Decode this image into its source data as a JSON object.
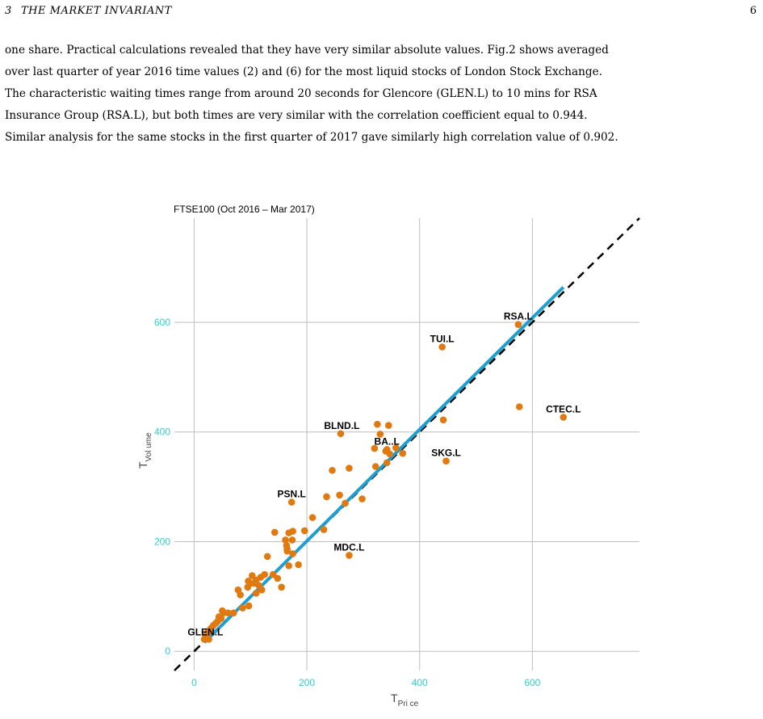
{
  "page": {
    "section_number": "3",
    "section_title": "THE MARKET INVARIANT",
    "page_number": "6",
    "paragraph_lines": [
      "one share. Practical calculations revealed that they have very similar absolute values. Fig.2 shows averaged",
      "over last quarter of year 2016 time values (2) and (6) for the most liquid stocks of London Stock Exchange.",
      "The characteristic waiting times range from around 20 seconds for Glencore (GLEN.L) to 10 mins for RSA",
      "Insurance Group (RSA.L), but both times are very similar with the correlation coefficient equal to 0.944.",
      "Similar analysis for the same stocks in the first quarter of 2017 gave similarly high correlation value of 0.902."
    ]
  },
  "chart_data": {
    "type": "scatter",
    "title": "FTSE100 (Oct 2016 – Mar 2017)",
    "xlabel_main": "T",
    "xlabel_sub": "Pri ce",
    "ylabel_main": "T",
    "ylabel_sub": "Vol ume",
    "xlim": [
      -35,
      790
    ],
    "ylim": [
      -35,
      790
    ],
    "x_ticks": [
      0,
      200,
      400,
      600
    ],
    "y_ticks": [
      0,
      200,
      400,
      600
    ],
    "grid": true,
    "colors": {
      "points": "#E07A10",
      "fit_line": "#1E9FD0",
      "diagonal": "#000000",
      "ticks": "#33CCCC",
      "grid": "#BEBEBE"
    },
    "fit_line": {
      "x": [
        18,
        655
      ],
      "y": [
        16,
        664
      ]
    },
    "diagonal": {
      "x": [
        -35,
        790
      ],
      "y": [
        -35,
        790
      ]
    },
    "labels": [
      {
        "text": "RSA.L",
        "x": 575,
        "y": 596
      },
      {
        "text": "TUI.L",
        "x": 440,
        "y": 555
      },
      {
        "text": "CTEC.L",
        "x": 655,
        "y": 427
      },
      {
        "text": "BLND.L",
        "x": 262,
        "y": 397
      },
      {
        "text": "BA..L",
        "x": 342,
        "y": 368
      },
      {
        "text": "SKG.L",
        "x": 447,
        "y": 347
      },
      {
        "text": "PSN.L",
        "x": 173,
        "y": 272
      },
      {
        "text": "MDC.L",
        "x": 275,
        "y": 175
      },
      {
        "text": "GLEN.L",
        "x": 20,
        "y": 20
      }
    ],
    "points": [
      {
        "x": 575,
        "y": 596
      },
      {
        "x": 440,
        "y": 555
      },
      {
        "x": 577,
        "y": 446
      },
      {
        "x": 655,
        "y": 427
      },
      {
        "x": 442,
        "y": 422
      },
      {
        "x": 447,
        "y": 347
      },
      {
        "x": 260,
        "y": 397
      },
      {
        "x": 325,
        "y": 414
      },
      {
        "x": 345,
        "y": 412
      },
      {
        "x": 330,
        "y": 396
      },
      {
        "x": 342,
        "y": 368
      },
      {
        "x": 340,
        "y": 365
      },
      {
        "x": 347,
        "y": 360
      },
      {
        "x": 358,
        "y": 371
      },
      {
        "x": 370,
        "y": 361
      },
      {
        "x": 320,
        "y": 370
      },
      {
        "x": 322,
        "y": 337
      },
      {
        "x": 342,
        "y": 344
      },
      {
        "x": 275,
        "y": 334
      },
      {
        "x": 245,
        "y": 330
      },
      {
        "x": 258,
        "y": 285
      },
      {
        "x": 235,
        "y": 282
      },
      {
        "x": 298,
        "y": 278
      },
      {
        "x": 268,
        "y": 270
      },
      {
        "x": 173,
        "y": 272
      },
      {
        "x": 210,
        "y": 244
      },
      {
        "x": 230,
        "y": 222
      },
      {
        "x": 143,
        "y": 217
      },
      {
        "x": 168,
        "y": 216
      },
      {
        "x": 175,
        "y": 219
      },
      {
        "x": 196,
        "y": 220
      },
      {
        "x": 162,
        "y": 203
      },
      {
        "x": 174,
        "y": 203
      },
      {
        "x": 164,
        "y": 193
      },
      {
        "x": 165,
        "y": 187
      },
      {
        "x": 165,
        "y": 183
      },
      {
        "x": 175,
        "y": 178
      },
      {
        "x": 130,
        "y": 173
      },
      {
        "x": 185,
        "y": 158
      },
      {
        "x": 168,
        "y": 156
      },
      {
        "x": 275,
        "y": 175
      },
      {
        "x": 148,
        "y": 133
      },
      {
        "x": 140,
        "y": 140
      },
      {
        "x": 125,
        "y": 140
      },
      {
        "x": 118,
        "y": 135
      },
      {
        "x": 103,
        "y": 138
      },
      {
        "x": 110,
        "y": 130
      },
      {
        "x": 96,
        "y": 128
      },
      {
        "x": 100,
        "y": 124
      },
      {
        "x": 107,
        "y": 124
      },
      {
        "x": 115,
        "y": 120
      },
      {
        "x": 120,
        "y": 112
      },
      {
        "x": 155,
        "y": 117
      },
      {
        "x": 78,
        "y": 112
      },
      {
        "x": 82,
        "y": 103
      },
      {
        "x": 95,
        "y": 117
      },
      {
        "x": 110,
        "y": 106
      },
      {
        "x": 86,
        "y": 79
      },
      {
        "x": 97,
        "y": 83
      },
      {
        "x": 70,
        "y": 70
      },
      {
        "x": 50,
        "y": 74
      },
      {
        "x": 52,
        "y": 70
      },
      {
        "x": 60,
        "y": 70
      },
      {
        "x": 44,
        "y": 63
      },
      {
        "x": 48,
        "y": 60
      },
      {
        "x": 38,
        "y": 51
      },
      {
        "x": 34,
        "y": 47
      },
      {
        "x": 30,
        "y": 42
      },
      {
        "x": 25,
        "y": 37
      },
      {
        "x": 22,
        "y": 30
      },
      {
        "x": 20,
        "y": 26
      },
      {
        "x": 18,
        "y": 22
      },
      {
        "x": 26,
        "y": 22
      },
      {
        "x": 28,
        "y": 36
      },
      {
        "x": 42,
        "y": 55
      }
    ]
  }
}
